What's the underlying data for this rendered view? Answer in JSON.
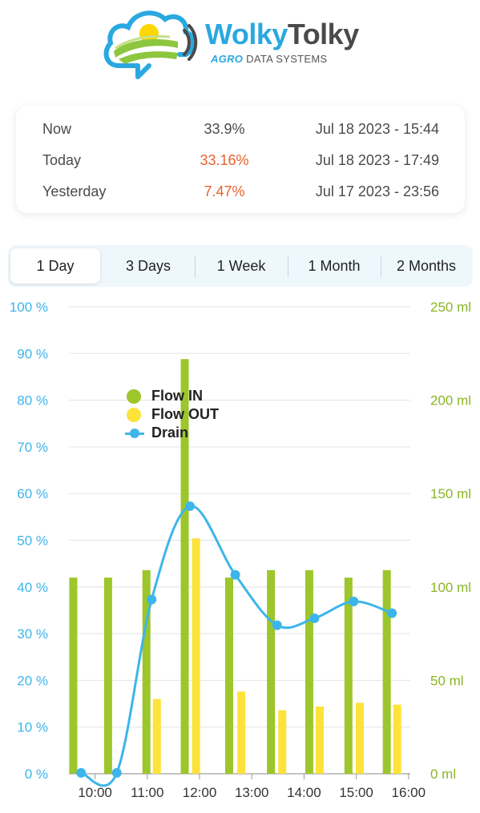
{
  "brand": {
    "name_part1": "Wolky",
    "name_part2": "Tolky",
    "tagline_accent": "AGRO",
    "tagline_rest": "DATA SYSTEMS",
    "colors": {
      "blue": "#2aa8e0",
      "green": "#8dc63f",
      "yellow": "#ffd700",
      "dark": "#4a4a4a"
    }
  },
  "summary": {
    "rows": [
      {
        "label": "Now",
        "value": "33.9%",
        "timestamp": "Jul 18 2023 - 15:44",
        "alert": false
      },
      {
        "label": "Today",
        "value": "33.16%",
        "timestamp": "Jul 18 2023 - 17:49",
        "alert": true
      },
      {
        "label": "Yesterday",
        "value": "7.47%",
        "timestamp": "Jul 17 2023 - 23:56",
        "alert": true
      }
    ],
    "alert_color": "#e8612c"
  },
  "tabs": {
    "items": [
      "1 Day",
      "3 Days",
      "1 Week",
      "1 Month",
      "2 Months"
    ],
    "active": 0
  },
  "chart_data": {
    "type": "bar",
    "x_ticks": [
      "10:00",
      "11:00",
      "12:00",
      "13:00",
      "14:00",
      "15:00",
      "16:00"
    ],
    "y_left": {
      "ticks": [
        "0 %",
        "10 %",
        "20 %",
        "30 %",
        "40 %",
        "50 %",
        "60 %",
        "70 %",
        "80 %",
        "90 %",
        "100 %"
      ],
      "range": [
        0,
        100
      ],
      "color": "#3db5ea"
    },
    "y_right": {
      "ticks": [
        "0 ml",
        "50 ml",
        "100 ml",
        "150 ml",
        "200 ml",
        "250 ml"
      ],
      "range": [
        0,
        250
      ],
      "color": "#8ab524"
    },
    "grid": true,
    "legend_position": "top-left",
    "series": [
      {
        "name": "Flow IN",
        "kind": "bar",
        "axis": "right",
        "color": "#9cc62b",
        "points": [
          {
            "t": "09:35",
            "v": 105
          },
          {
            "t": "10:15",
            "v": 105
          },
          {
            "t": "10:59",
            "v": 109
          },
          {
            "t": "11:43",
            "v": 222
          },
          {
            "t": "12:34",
            "v": 105
          },
          {
            "t": "13:22",
            "v": 109
          },
          {
            "t": "14:06",
            "v": 109
          },
          {
            "t": "14:51",
            "v": 105
          },
          {
            "t": "15:35",
            "v": 109
          }
        ]
      },
      {
        "name": "Flow OUT",
        "kind": "bar",
        "axis": "right",
        "color": "#fde23a",
        "points": [
          {
            "t": "11:11",
            "v": 40
          },
          {
            "t": "11:56",
            "v": 126
          },
          {
            "t": "12:48",
            "v": 44
          },
          {
            "t": "13:35",
            "v": 34
          },
          {
            "t": "14:18",
            "v": 36
          },
          {
            "t": "15:04",
            "v": 38
          },
          {
            "t": "15:47",
            "v": 37
          }
        ]
      },
      {
        "name": "Drain",
        "kind": "line",
        "axis": "left",
        "color": "#3db5ea",
        "points": [
          {
            "t": "09:44",
            "v": 0.2
          },
          {
            "t": "10:25",
            "v": 0.2
          },
          {
            "t": "11:05",
            "v": 37.3
          },
          {
            "t": "11:49",
            "v": 57.3
          },
          {
            "t": "12:41",
            "v": 42.6
          },
          {
            "t": "13:29",
            "v": 31.8
          },
          {
            "t": "14:12",
            "v": 33.3
          },
          {
            "t": "14:57",
            "v": 36.9
          },
          {
            "t": "15:41",
            "v": 34.4
          }
        ]
      }
    ]
  }
}
